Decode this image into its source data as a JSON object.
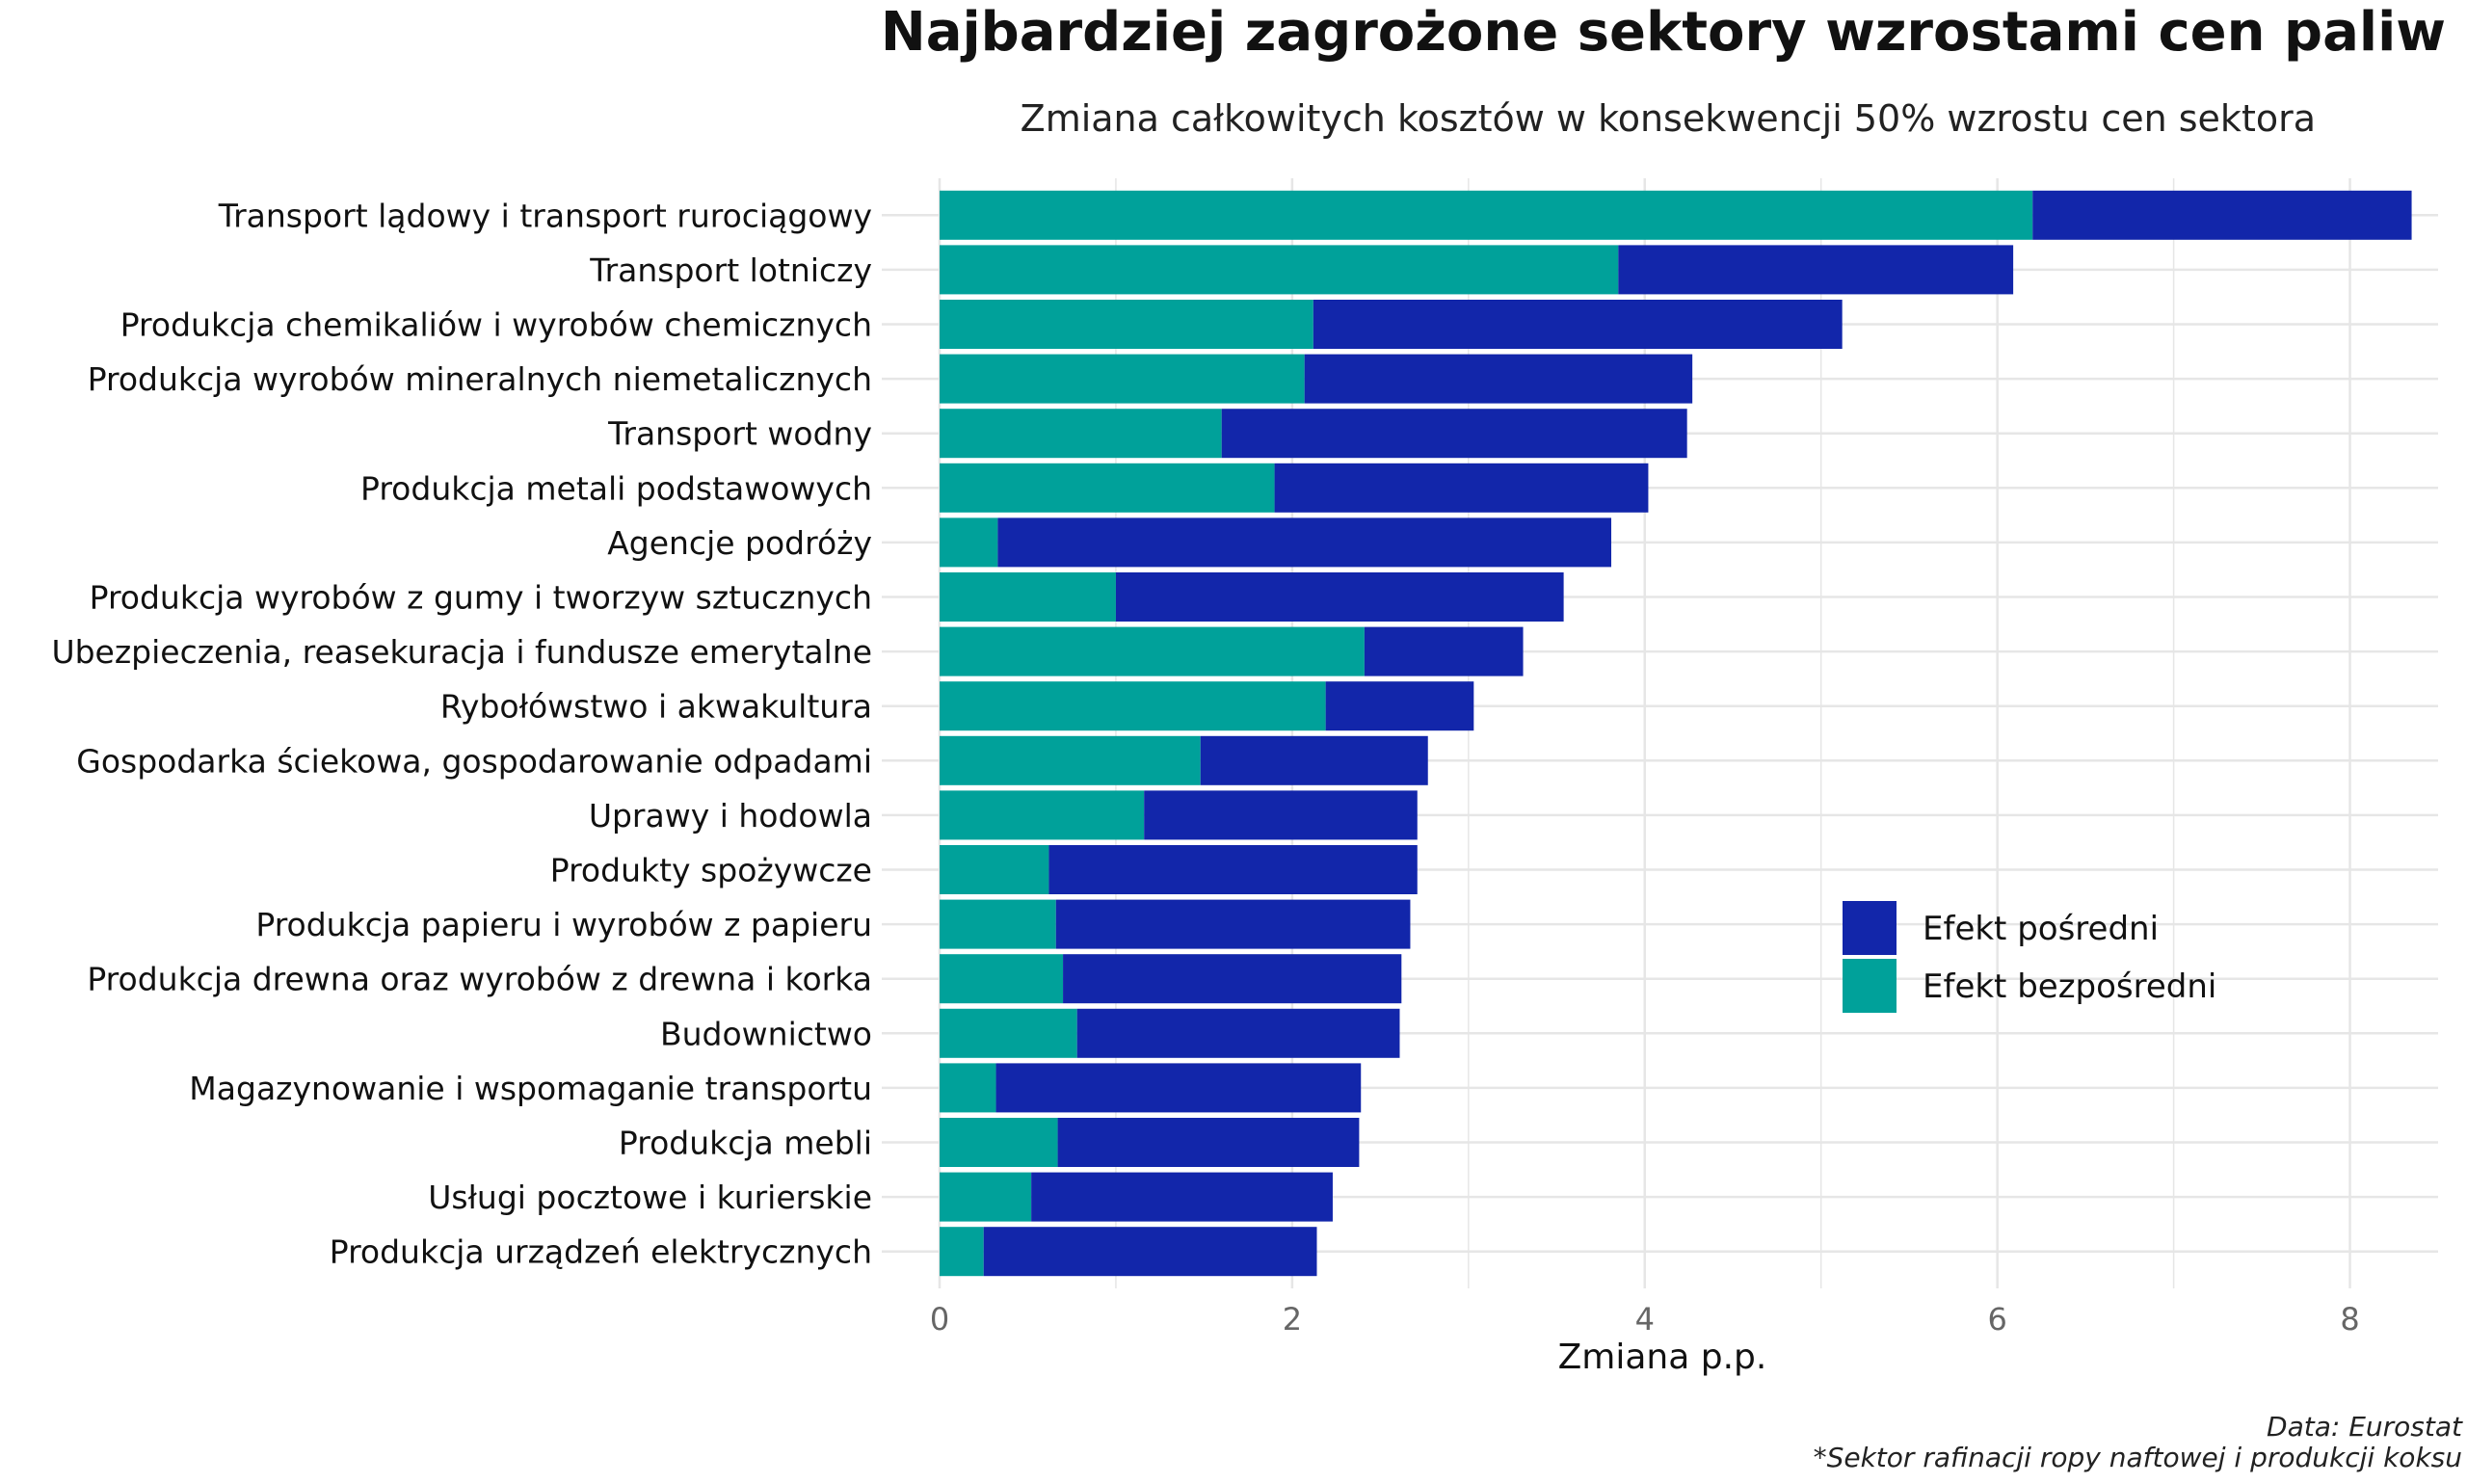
{
  "chart_data": {
    "type": "bar",
    "stacked": true,
    "orientation": "horizontal",
    "title": "Najbardziej zagrożone sektory wzrostami cen paliw",
    "subtitle": "Zmiana całkowitych kosztów w konsekwencji 50% wzrostu cen sektora",
    "xlabel": "Zmiana p.p.",
    "ylabel": "",
    "xlim": [
      0,
      8.5
    ],
    "xticks": [
      "0",
      "2",
      "4",
      "6",
      "8"
    ],
    "grid": true,
    "legend_position": "right",
    "categories": [
      "Transport lądowy i transport rurociągowy",
      "Transport lotniczy",
      "Produkcja chemikaliów i wyrobów chemicznych",
      "Produkcja wyrobów mineralnych niemetalicznych",
      "Transport wodny",
      "Produkcja metali podstawowych",
      "Agencje podróży",
      "Produkcja wyrobów z gumy i tworzyw sztucznych",
      "Ubezpieczenia, reasekuracja i fundusze emerytalne",
      "Rybołówstwo i akwakultura",
      "Gospodarka ściekowa, gospodarowanie odpadami",
      "Uprawy i hodowla",
      "Produkty spożywcze",
      "Produkcja papieru i wyrobów z papieru",
      "Produkcja drewna oraz wyrobów z drewna i korka",
      "Budownictwo",
      "Magazynowanie i wspomaganie transportu",
      "Produkcja mebli",
      "Usługi pocztowe i kurierskie",
      "Produkcja urządzeń elektrycznych"
    ],
    "series": [
      {
        "name": "Efekt bezpośredni",
        "color": "#00A19A",
        "values": [
          6.2,
          3.85,
          2.12,
          2.07,
          1.6,
          1.9,
          0.33,
          1.0,
          2.41,
          2.19,
          1.48,
          1.16,
          0.62,
          0.66,
          0.7,
          0.78,
          0.32,
          0.67,
          0.52,
          0.25
        ]
      },
      {
        "name": "Efekt pośredni",
        "color": "#1226AA",
        "values": [
          2.15,
          2.24,
          3.0,
          2.2,
          2.64,
          2.12,
          3.48,
          2.54,
          0.9,
          0.84,
          1.29,
          1.55,
          2.09,
          2.01,
          1.92,
          1.83,
          2.07,
          1.71,
          1.71,
          1.89
        ]
      }
    ],
    "legend_order": [
      "Efekt pośredni",
      "Efekt bezpośredni"
    ],
    "notes": [
      "Data: Eurostat",
      "*Sektor rafinacji ropy naftowej i produkcji koksu"
    ]
  },
  "colors": {
    "background": "#FFFFFF",
    "grid": "#E6E6E6",
    "text": "#111111",
    "tick_text": "#666666"
  }
}
